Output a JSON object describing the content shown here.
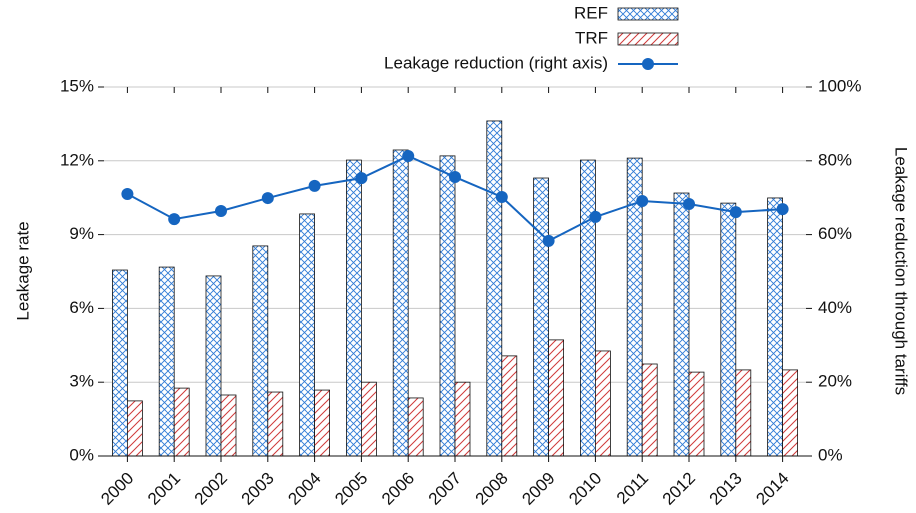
{
  "chart_data": {
    "type": "bar_line",
    "categories": [
      "2000",
      "2001",
      "2002",
      "2003",
      "2004",
      "2005",
      "2006",
      "2007",
      "2008",
      "2009",
      "2010",
      "2011",
      "2012",
      "2013",
      "2014"
    ],
    "series": [
      {
        "name": "REF",
        "color": "#2f7bd6",
        "pattern": "crosshatch",
        "values": [
          7.56,
          7.68,
          7.32,
          8.54,
          9.84,
          12.03,
          12.44,
          12.2,
          13.62,
          11.3,
          12.03,
          12.11,
          10.69,
          10.28,
          10.49
        ]
      },
      {
        "name": "TRF",
        "color": "#d03a3a",
        "pattern": "diagonal",
        "values": [
          2.24,
          2.76,
          2.48,
          2.6,
          2.68,
          3.0,
          2.36,
          3.0,
          4.07,
          4.72,
          4.27,
          3.74,
          3.41,
          3.5,
          3.5
        ]
      },
      {
        "name": "Leakage reduction (right axis)",
        "color": "#1565c0",
        "type": "line",
        "axis": "y2",
        "values": [
          71.0,
          64.2,
          66.4,
          69.9,
          73.2,
          75.3,
          81.3,
          75.6,
          70.2,
          58.3,
          64.8,
          69.1,
          68.3,
          66.1,
          66.9
        ]
      }
    ],
    "ylabel": "Leakage rate",
    "y2label": "Leakage reduction through tariffs",
    "ylim": [
      0,
      15
    ],
    "yticks": [
      {
        "value": 0,
        "label": "0%"
      },
      {
        "value": 3,
        "label": "3%"
      },
      {
        "value": 6,
        "label": "6%"
      },
      {
        "value": 9,
        "label": "9%"
      },
      {
        "value": 12,
        "label": "12%"
      },
      {
        "value": 15,
        "label": "15%"
      }
    ],
    "y2lim": [
      0,
      100
    ],
    "y2ticks": [
      {
        "value": 0,
        "label": "0%"
      },
      {
        "value": 20,
        "label": "20%"
      },
      {
        "value": 40,
        "label": "40%"
      },
      {
        "value": 60,
        "label": "60%"
      },
      {
        "value": 80,
        "label": "80%"
      },
      {
        "value": 100,
        "label": "100%"
      }
    ],
    "grid": true,
    "legend": "top-right"
  }
}
